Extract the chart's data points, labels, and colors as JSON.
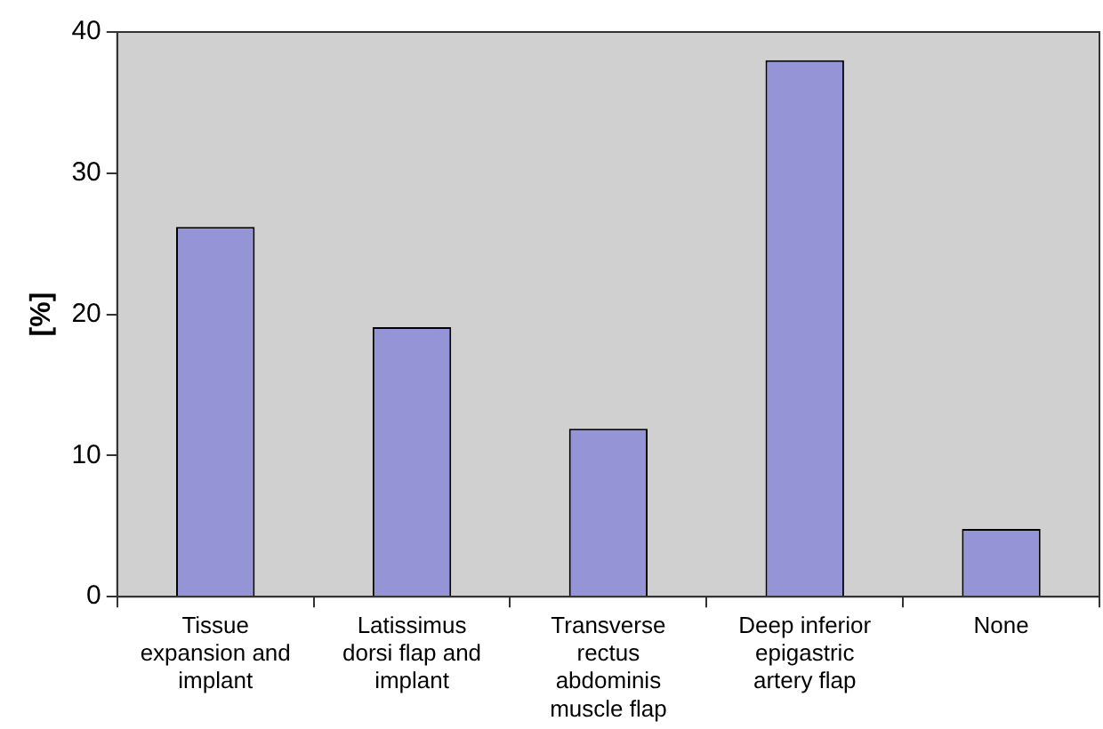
{
  "chart_data": {
    "type": "bar",
    "ylabel": "[%]",
    "categories": [
      "Tissue expansion and implant",
      "Latissimus dorsi flap and implant",
      "Transverse rectus abdominis muscle flap",
      "Deep inferior epigastric artery flap",
      "None"
    ],
    "values": [
      26.2,
      19.1,
      11.9,
      38.0,
      4.8
    ],
    "color": "#9494d6",
    "ylim": [
      0,
      40
    ],
    "yticks": [
      0,
      10,
      20,
      30,
      40
    ],
    "grid": false,
    "legend": false
  }
}
